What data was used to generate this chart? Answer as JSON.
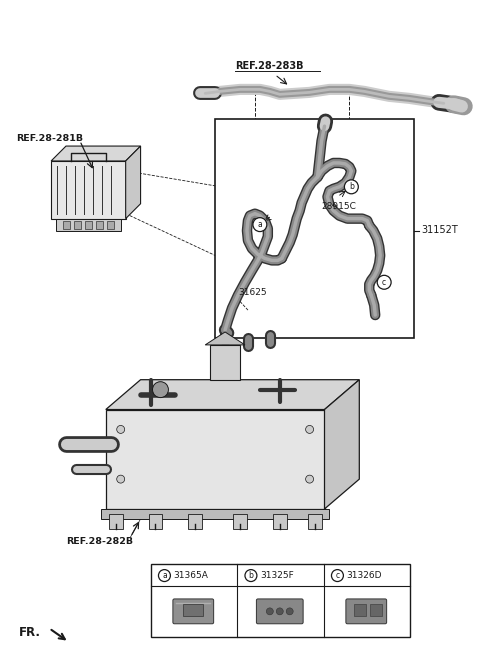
{
  "bg_color": "#ffffff",
  "fig_width": 4.8,
  "fig_height": 6.57,
  "dpi": 100,
  "labels": {
    "ref_281b": "REF.28-281B",
    "ref_282b": "REF.28-282B",
    "ref_283b": "REF.28-283B",
    "part_28915c": "28915C",
    "part_31625": "31625",
    "part_31152t": "31152T",
    "a_label": "a",
    "b_label": "b",
    "c_label": "c",
    "col_a": "31365A",
    "col_b": "31325F",
    "col_c": "31326D",
    "fr_label": "FR."
  },
  "colors": {
    "black": "#1a1a1a",
    "dark": "#333333",
    "gray": "#777777",
    "med_gray": "#999999",
    "light_gray": "#cccccc",
    "tube_outer": "#888888",
    "tube_inner": "#aaaaaa",
    "comp_fill": "#dddddd",
    "comp_dark": "#555555",
    "white": "#ffffff"
  }
}
